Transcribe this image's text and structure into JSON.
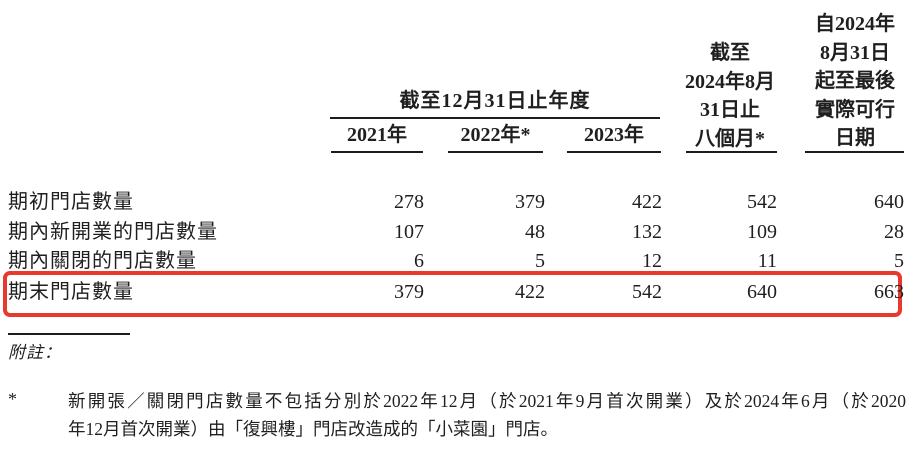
{
  "table": {
    "header": {
      "annual_group": {
        "title": "截至12月31日止年度",
        "years": [
          "2021年",
          "2022年*",
          "2023年"
        ]
      },
      "eight_month_col": {
        "lines": [
          "截至",
          "2024年8月",
          "31日止",
          "八個月*"
        ]
      },
      "latest_date_col": {
        "lines": [
          "自2024年",
          "8月31日",
          "起至最後",
          "實際可行",
          "日期"
        ]
      }
    },
    "rows": [
      {
        "label": "期初門店數量",
        "values": [
          "278",
          "379",
          "422",
          "542",
          "640"
        ],
        "highlighted": false
      },
      {
        "label": "期內新開業的門店數量",
        "values": [
          "107",
          "48",
          "132",
          "109",
          "28"
        ],
        "highlighted": false
      },
      {
        "label": "期內關閉的門店數量",
        "values": [
          "6",
          "5",
          "12",
          "11",
          "5"
        ],
        "highlighted": false
      },
      {
        "label": "期末門店數量",
        "values": [
          "379",
          "422",
          "542",
          "640",
          "663"
        ],
        "highlighted": true
      }
    ],
    "highlight_box_color": "#e8392e",
    "text_color": "#1f1f1f"
  },
  "notes": {
    "heading": "附註：",
    "footnote_marker": "*",
    "footnote_line1": "新開張／關閉門店數量不包括分別於2022年12月（於2021年9月首次開業）及於2024年6月（於2020",
    "footnote_line2": "年12月首次開業）由「復興樓」門店改造成的「小菜園」門店。"
  }
}
